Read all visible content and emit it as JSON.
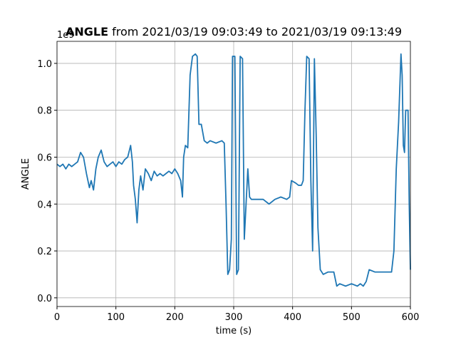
{
  "chart_data": {
    "type": "line",
    "title_bold": "ANGLE",
    "title": "from 2021/03/19 09:03:49 to 2021/03/19 09:13:49",
    "xlabel": "time (s)",
    "ylabel": "ANGLE",
    "y_offset_text": "1e9",
    "x": [
      0,
      5,
      10,
      15,
      20,
      25,
      30,
      35,
      40,
      45,
      50,
      55,
      58,
      62,
      66,
      70,
      75,
      80,
      85,
      90,
      95,
      100,
      105,
      110,
      115,
      120,
      125,
      128,
      130,
      133,
      136,
      139,
      142,
      146,
      150,
      155,
      160,
      165,
      170,
      175,
      180,
      185,
      190,
      195,
      200,
      205,
      210,
      213,
      215,
      218,
      222,
      226,
      230,
      235,
      238,
      241,
      245,
      250,
      255,
      260,
      270,
      280,
      284,
      287,
      290,
      293,
      296,
      298,
      302,
      305,
      308,
      311,
      315,
      318,
      321,
      324,
      327,
      330,
      340,
      350,
      360,
      370,
      380,
      390,
      395,
      398,
      405,
      410,
      415,
      418,
      421,
      424,
      428,
      431,
      434,
      437,
      440,
      443,
      447,
      452,
      460,
      470,
      475,
      480,
      490,
      500,
      510,
      515,
      520,
      525,
      530,
      540,
      550,
      560,
      568,
      572,
      576,
      580,
      584,
      586,
      588,
      590,
      592,
      596,
      598,
      600
    ],
    "series": [
      {
        "name": "ANGLE",
        "color": "#1f77b4",
        "values": [
          0.57,
          0.56,
          0.57,
          0.55,
          0.57,
          0.56,
          0.57,
          0.58,
          0.62,
          0.6,
          0.53,
          0.47,
          0.5,
          0.46,
          0.55,
          0.6,
          0.63,
          0.58,
          0.56,
          0.57,
          0.58,
          0.56,
          0.58,
          0.57,
          0.59,
          0.6,
          0.65,
          0.58,
          0.48,
          0.42,
          0.32,
          0.46,
          0.52,
          0.46,
          0.55,
          0.53,
          0.5,
          0.54,
          0.52,
          0.53,
          0.52,
          0.53,
          0.54,
          0.53,
          0.55,
          0.53,
          0.5,
          0.43,
          0.6,
          0.65,
          0.64,
          0.95,
          1.03,
          1.04,
          1.03,
          0.74,
          0.74,
          0.67,
          0.66,
          0.67,
          0.66,
          0.67,
          0.66,
          0.4,
          0.1,
          0.12,
          0.25,
          1.03,
          1.03,
          0.1,
          0.12,
          1.03,
          1.02,
          0.25,
          0.4,
          0.55,
          0.43,
          0.42,
          0.42,
          0.42,
          0.4,
          0.42,
          0.43,
          0.42,
          0.43,
          0.5,
          0.49,
          0.48,
          0.48,
          0.5,
          0.8,
          1.03,
          1.02,
          0.5,
          0.2,
          1.02,
          0.7,
          0.3,
          0.12,
          0.1,
          0.11,
          0.11,
          0.05,
          0.06,
          0.05,
          0.06,
          0.05,
          0.06,
          0.05,
          0.07,
          0.12,
          0.11,
          0.11,
          0.11,
          0.11,
          0.2,
          0.55,
          0.75,
          1.04,
          0.95,
          0.65,
          0.62,
          0.8,
          0.8,
          0.4,
          0.12
        ]
      }
    ],
    "xlim": [
      0,
      600
    ],
    "xticks": [
      0,
      100,
      200,
      300,
      400,
      500,
      600
    ],
    "ylim": [
      -0.037,
      1.094
    ],
    "yticks": [
      {
        "value": 0,
        "label": "0.0"
      },
      0.2,
      0.4,
      0.6,
      0.8,
      {
        "value": 1,
        "label": "1.0"
      }
    ],
    "grid": true
  }
}
